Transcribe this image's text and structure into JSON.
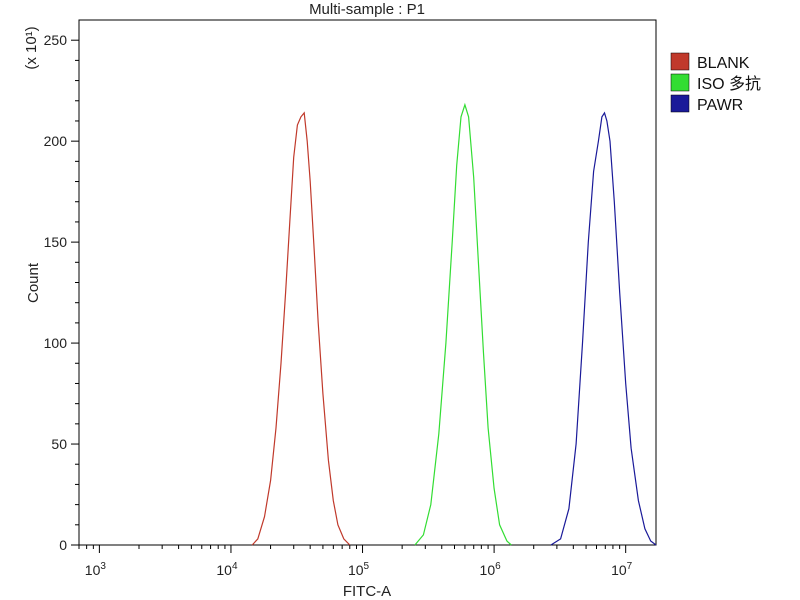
{
  "chart_data": {
    "type": "line",
    "title": "Multi-sample : P1",
    "xlabel": "FITC-A",
    "ylabel": "Count",
    "y_multiplier_label": "(x 10¹)",
    "x_scale": "log",
    "xlim": [
      700,
      17000000
    ],
    "ylim": [
      0,
      260
    ],
    "x_ticks": [
      {
        "value": 1000,
        "base": "10",
        "exp": "3"
      },
      {
        "value": 10000,
        "base": "10",
        "exp": "4"
      },
      {
        "value": 100000,
        "base": "10",
        "exp": "5"
      },
      {
        "value": 1000000,
        "base": "10",
        "exp": "6"
      },
      {
        "value": 10000000,
        "base": "10",
        "exp": "7"
      }
    ],
    "y_ticks": [
      0,
      50,
      100,
      150,
      200,
      250
    ],
    "grid": false,
    "legend_position": "right",
    "series": [
      {
        "name": "BLANK",
        "color": "#c0392b",
        "points": [
          [
            14500,
            0
          ],
          [
            16000,
            3
          ],
          [
            18000,
            14
          ],
          [
            20000,
            32
          ],
          [
            22000,
            58
          ],
          [
            24000,
            90
          ],
          [
            26000,
            125
          ],
          [
            28000,
            160
          ],
          [
            30000,
            192
          ],
          [
            32000,
            208
          ],
          [
            34000,
            212
          ],
          [
            36000,
            214
          ],
          [
            38000,
            200
          ],
          [
            40000,
            180
          ],
          [
            43000,
            145
          ],
          [
            46000,
            110
          ],
          [
            50000,
            75
          ],
          [
            55000,
            42
          ],
          [
            60000,
            22
          ],
          [
            65000,
            10
          ],
          [
            72000,
            3
          ],
          [
            80000,
            0
          ]
        ]
      },
      {
        "name": "ISO 多抗",
        "color": "#33dd33",
        "points": [
          [
            250000,
            0
          ],
          [
            290000,
            5
          ],
          [
            330000,
            20
          ],
          [
            380000,
            55
          ],
          [
            430000,
            100
          ],
          [
            480000,
            150
          ],
          [
            520000,
            188
          ],
          [
            560000,
            212
          ],
          [
            600000,
            218
          ],
          [
            640000,
            212
          ],
          [
            700000,
            182
          ],
          [
            760000,
            140
          ],
          [
            830000,
            95
          ],
          [
            900000,
            58
          ],
          [
            1000000,
            28
          ],
          [
            1100000,
            10
          ],
          [
            1250000,
            2
          ],
          [
            1350000,
            0
          ]
        ]
      },
      {
        "name": "PAWR",
        "color": "#1a1a99",
        "points": [
          [
            2700000,
            0
          ],
          [
            3200000,
            3
          ],
          [
            3700000,
            18
          ],
          [
            4200000,
            50
          ],
          [
            4700000,
            100
          ],
          [
            5200000,
            150
          ],
          [
            5700000,
            185
          ],
          [
            6200000,
            200
          ],
          [
            6600000,
            212
          ],
          [
            6900000,
            214
          ],
          [
            7200000,
            210
          ],
          [
            7600000,
            200
          ],
          [
            8200000,
            170
          ],
          [
            9000000,
            125
          ],
          [
            10000000,
            80
          ],
          [
            11000000,
            48
          ],
          [
            12500000,
            22
          ],
          [
            14000000,
            8
          ],
          [
            15500000,
            2
          ],
          [
            17000000,
            0
          ]
        ]
      }
    ]
  }
}
